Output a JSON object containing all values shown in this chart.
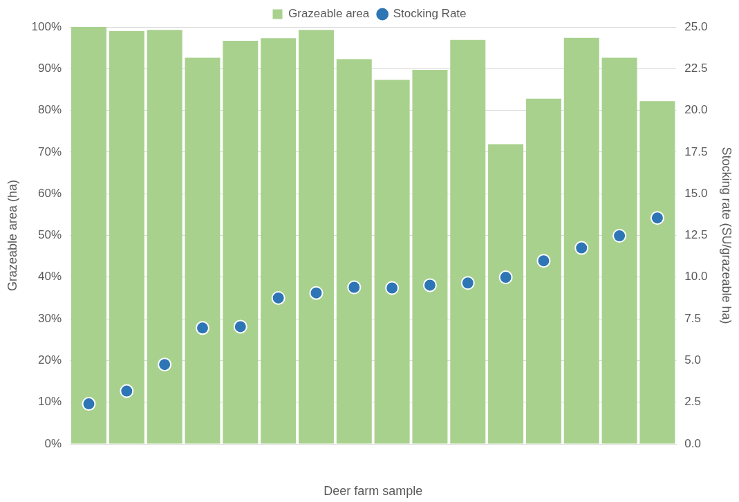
{
  "chart_data": {
    "type": "bar",
    "xlabel": "Deer farm sample",
    "ylabel": "Grazeable area (ha)",
    "y2label": "Stocking rate (SU/grazeable ha)",
    "categories": [
      null,
      null,
      null,
      null,
      null,
      null,
      null,
      null,
      null,
      null,
      null,
      null,
      null,
      null,
      null,
      null
    ],
    "series": [
      {
        "name": "Grazeable area",
        "color": "#a9d18e",
        "values": [
          100,
          99.0,
          99.3,
          92.6,
          96.7,
          97.3,
          99.3,
          92.3,
          87.3,
          89.7,
          96.9,
          71.9,
          82.8,
          97.4,
          92.6,
          82.2
        ]
      },
      {
        "name": "Stocking Rate",
        "type": "scatter",
        "axis": "y2",
        "color": "#2e75b6",
        "marker": "circle",
        "values": [
          2.4,
          3.17,
          4.76,
          6.95,
          7.03,
          8.75,
          9.05,
          9.39,
          9.35,
          9.52,
          9.65,
          9.99,
          10.98,
          11.75,
          12.48,
          13.55
        ]
      }
    ],
    "ylim": [
      0,
      100
    ],
    "yticks": [
      {
        "value": 0,
        "label": "0%"
      },
      {
        "value": 10,
        "label": "10%"
      },
      {
        "value": 20,
        "label": "20%"
      },
      {
        "value": 30,
        "label": "30%"
      },
      {
        "value": 40,
        "label": "40%"
      },
      {
        "value": 50,
        "label": "50%"
      },
      {
        "value": 60,
        "label": "60%"
      },
      {
        "value": 70,
        "label": "70%"
      },
      {
        "value": 80,
        "label": "80%"
      },
      {
        "value": 90,
        "label": "90%"
      },
      {
        "value": 100,
        "label": "100%"
      }
    ],
    "y2lim": [
      0,
      25
    ],
    "y2ticks": [
      {
        "value": 0,
        "label": "0.0"
      },
      2.5,
      {
        "value": 5,
        "label": "5.0"
      },
      7.5,
      {
        "value": 10,
        "label": "10.0"
      },
      12.5,
      {
        "value": 15,
        "label": "15.0"
      },
      17.5,
      {
        "value": 20,
        "label": "20.0"
      },
      22.5,
      {
        "value": 25,
        "label": "25.0"
      }
    ],
    "grid": "y",
    "legend": "top"
  }
}
